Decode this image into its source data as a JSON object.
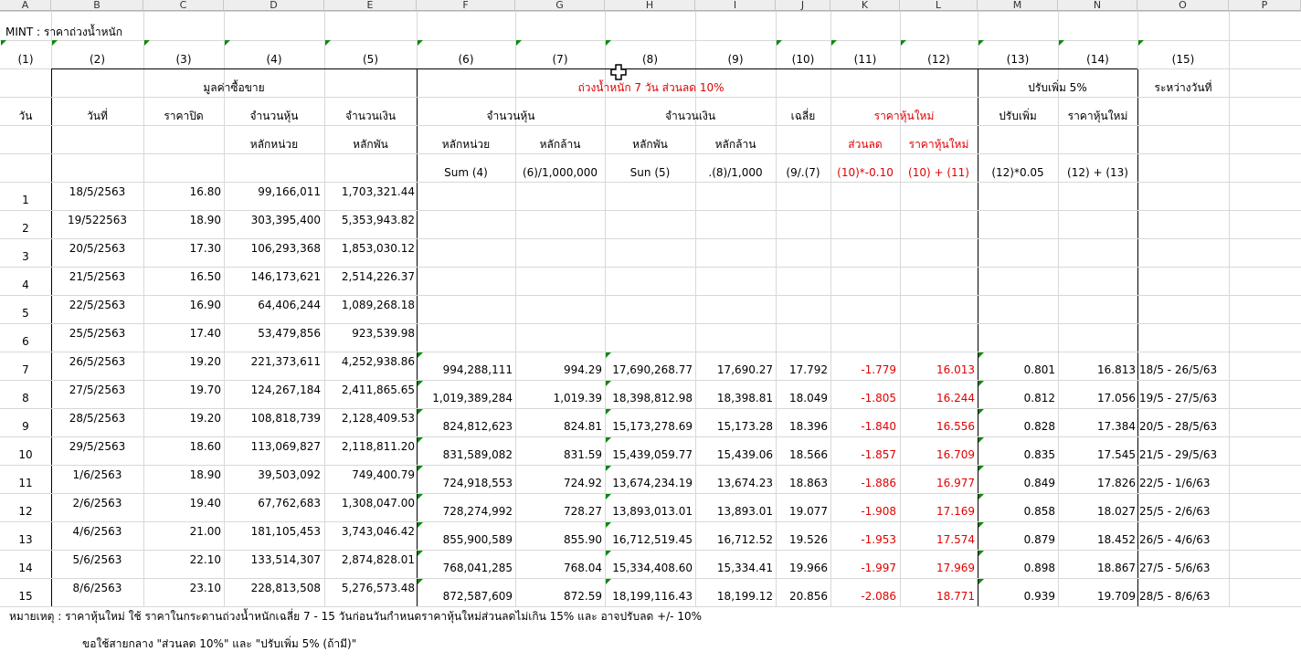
{
  "column_letters": [
    "A",
    "B",
    "C",
    "D",
    "E",
    "F",
    "G",
    "H",
    "I",
    "J",
    "K",
    "L",
    "M",
    "N",
    "O",
    "P"
  ],
  "title": "MINT : ราคาถ่วงน้ำหนัก",
  "col_numbers": [
    "(1)",
    "(2)",
    "(3)",
    "(4)",
    "(5)",
    "(6)",
    "(7)",
    "(8)",
    "(9)",
    "(10)",
    "(11)",
    "(12)",
    "(13)",
    "(14)",
    "(15)"
  ],
  "headers": {
    "trade_value": "มูลค่าซื้อขาย",
    "weighted": "ถ่วงน้ำหนัก   7 วัน   ส่วนลด   10%",
    "adjust_up": "ปรับเพิ่ม   5%",
    "between_dates": "ระหว่างวันที่",
    "day": "วัน",
    "date": "วันที่",
    "close_price": "ราคาปิด",
    "shares": "จำนวนหุ้น",
    "amount": "จำนวนเงิน",
    "shares2": "จำนวนหุ้น",
    "amount2": "จำนวนเงิน",
    "average": "เฉลี่ย",
    "new_price": "ราคาหุ้นใหม่",
    "adjust": "ปรับเพิ่ม",
    "new_price2": "ราคาหุ้นใหม่",
    "unit_d": "หลักหน่วย",
    "unit_e": "หลักพัน",
    "unit_f": "หลักหน่วย",
    "unit_g": "หลักล้าน",
    "unit_h": "หลักพัน",
    "unit_i": "หลักล้าน",
    "unit_k": "ส่วนลด",
    "unit_l": "ราคาหุ้นใหม่",
    "f_f": "Sum (4)",
    "f_g": "(6)/1,000,000",
    "f_h": "Sun (5)",
    "f_i": ".(8)/1,000",
    "f_j": "(9/.(7)",
    "f_k": "(10)*-0.10",
    "f_l": "(10) + (11)",
    "f_m": "(12)*0.05",
    "f_n": "(12) + (13)"
  },
  "rows": [
    {
      "n": "1",
      "date": "18/5/2563",
      "close": "16.80",
      "shares": "99,166,011",
      "amount": "1,703,321.44"
    },
    {
      "n": "2",
      "date": "19/522563",
      "close": "18.90",
      "shares": "303,395,400",
      "amount": "5,353,943.82"
    },
    {
      "n": "3",
      "date": "20/5/2563",
      "close": "17.30",
      "shares": "106,293,368",
      "amount": "1,853,030.12"
    },
    {
      "n": "4",
      "date": "21/5/2563",
      "close": "16.50",
      "shares": "146,173,621",
      "amount": "2,514,226.37"
    },
    {
      "n": "5",
      "date": "22/5/2563",
      "close": "16.90",
      "shares": "64,406,244",
      "amount": "1,089,268.18"
    },
    {
      "n": "6",
      "date": "25/5/2563",
      "close": "17.40",
      "shares": "53,479,856",
      "amount": "923,539.98"
    },
    {
      "n": "7",
      "date": "26/5/2563",
      "close": "19.20",
      "shares": "221,373,611",
      "amount": "4,252,938.86",
      "f": "994,288,111",
      "g": "994.29",
      "h": "17,690,268.77",
      "i": "17,690.27",
      "j": "17.792",
      "k": "-1.779",
      "l": "16.013",
      "m": "0.801",
      "nn": "16.813",
      "o": "18/5 - 26/5/63"
    },
    {
      "n": "8",
      "date": "27/5/2563",
      "close": "19.70",
      "shares": "124,267,184",
      "amount": "2,411,865.65",
      "f": "1,019,389,284",
      "g": "1,019.39",
      "h": "18,398,812.98",
      "i": "18,398.81",
      "j": "18.049",
      "k": "-1.805",
      "l": "16.244",
      "m": "0.812",
      "nn": "17.056",
      "o": "19/5 - 27/5/63"
    },
    {
      "n": "9",
      "date": "28/5/2563",
      "close": "19.20",
      "shares": "108,818,739",
      "amount": "2,128,409.53",
      "f": "824,812,623",
      "g": "824.81",
      "h": "15,173,278.69",
      "i": "15,173.28",
      "j": "18.396",
      "k": "-1.840",
      "l": "16.556",
      "m": "0.828",
      "nn": "17.384",
      "o": "20/5 - 28/5/63"
    },
    {
      "n": "10",
      "date": "29/5/2563",
      "close": "18.60",
      "shares": "113,069,827",
      "amount": "2,118,811.20",
      "f": "831,589,082",
      "g": "831.59",
      "h": "15,439,059.77",
      "i": "15,439.06",
      "j": "18.566",
      "k": "-1.857",
      "l": "16.709",
      "m": "0.835",
      "nn": "17.545",
      "o": "21/5 - 29/5/63"
    },
    {
      "n": "11",
      "date": "1/6/2563",
      "close": "18.90",
      "shares": "39,503,092",
      "amount": "749,400.79",
      "f": "724,918,553",
      "g": "724.92",
      "h": "13,674,234.19",
      "i": "13,674.23",
      "j": "18.863",
      "k": "-1.886",
      "l": "16.977",
      "m": "0.849",
      "nn": "17.826",
      "o": "22/5 - 1/6/63"
    },
    {
      "n": "12",
      "date": "2/6/2563",
      "close": "19.40",
      "shares": "67,762,683",
      "amount": "1,308,047.00",
      "f": "728,274,992",
      "g": "728.27",
      "h": "13,893,013.01",
      "i": "13,893.01",
      "j": "19.077",
      "k": "-1.908",
      "l": "17.169",
      "m": "0.858",
      "nn": "18.027",
      "o": "25/5 - 2/6/63"
    },
    {
      "n": "13",
      "date": "4/6/2563",
      "close": "21.00",
      "shares": "181,105,453",
      "amount": "3,743,046.42",
      "f": "855,900,589",
      "g": "855.90",
      "h": "16,712,519.45",
      "i": "16,712.52",
      "j": "19.526",
      "k": "-1.953",
      "l": "17.574",
      "m": "0.879",
      "nn": "18.452",
      "o": "26/5 - 4/6/63"
    },
    {
      "n": "14",
      "date": "5/6/2563",
      "close": "22.10",
      "shares": "133,514,307",
      "amount": "2,874,828.01",
      "f": "768,041,285",
      "g": "768.04",
      "h": "15,334,408.60",
      "i": "15,334.41",
      "j": "19.966",
      "k": "-1.997",
      "l": "17.969",
      "m": "0.898",
      "nn": "18.867",
      "o": "27/5 - 5/6/63"
    },
    {
      "n": "15",
      "date": "8/6/2563",
      "close": "23.10",
      "shares": "228,813,508",
      "amount": "5,276,573.48",
      "f": "872,587,609",
      "g": "872.59",
      "h": "18,199,116.43",
      "i": "18,199.12",
      "j": "20.856",
      "k": "-2.086",
      "l": "18.771",
      "m": "0.939",
      "nn": "19.709",
      "o": "28/5 - 8/6/63"
    }
  ],
  "note1": "หมายเหตุ : ราคาหุ้นใหม่ ใช้ ราคาในกระดานถ่วงน้ำหนักเฉลี่ย 7 - 15 วันก่อนวันกำหนดราคาหุ้นใหม่ส่วนลดไม่เกิน 15% และ อาจปรับลด +/- 10%",
  "note2": "ขอใช้สายกลาง \"ส่วนลด 10%\" และ \"ปรับเพิ่ม 5% (ถ้ามี)\""
}
